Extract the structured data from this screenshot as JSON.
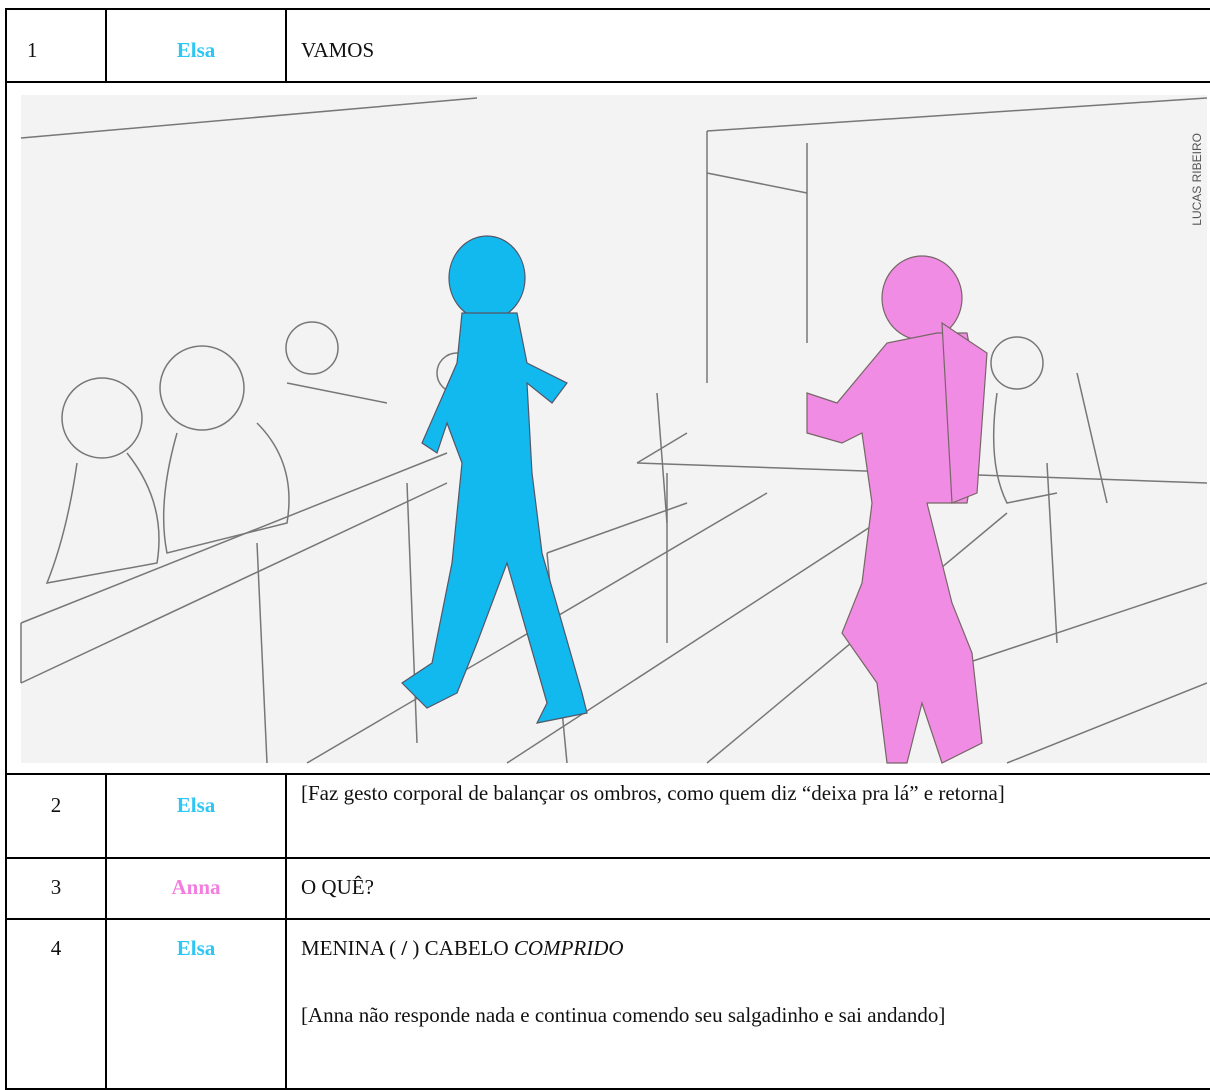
{
  "table": {
    "rows": [
      {
        "number": "1",
        "speaker": "Elsa",
        "lines": [
          "VAMOS"
        ]
      },
      {
        "number": "2",
        "speaker": "Elsa",
        "lines": [
          "[Faz gesto corporal de balançar os ombros, como quem diz “deixa pra lá” e retorna]"
        ]
      },
      {
        "number": "3",
        "speaker": "Anna",
        "lines": [
          "O QUÊ?"
        ]
      },
      {
        "number": "4",
        "speaker": "Elsa",
        "lines": [
          [
            "MENINA (",
            "/",
            ")  CABELO",
            "COMPRIDO"
          ],
          "[Anna não responde nada e continua comendo seu salgadinho e sai andando]"
        ]
      }
    ]
  },
  "illustration": {
    "credit": "LUCAS RIBEIRO"
  }
}
